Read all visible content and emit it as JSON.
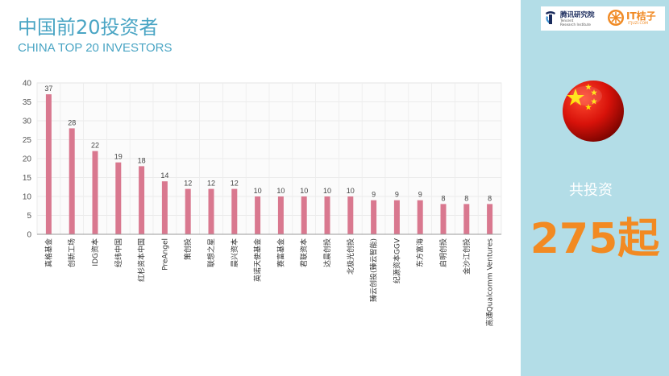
{
  "header": {
    "title": "中国前20投资者",
    "subtitle": "CHINA TOP 20 INVESTORS"
  },
  "logos": {
    "tencent_name": "腾讯研究院",
    "tencent_sub_line1": "Tencent",
    "tencent_sub_line2": "Research Institute",
    "it_name": "IT桔子",
    "it_sub": "ITJUZI.COM"
  },
  "side_panel": {
    "total_label": "共投资",
    "total_value": "275起"
  },
  "colors": {
    "title": "#4aa5c4",
    "bar": "#d9788f",
    "side_panel_bg": "#b3dde7",
    "total_value": "#f28a22"
  },
  "chart_data": {
    "type": "bar",
    "categories": [
      "真格基金",
      "创新工场",
      "IDG资本",
      "经纬中国",
      "红杉资本中国",
      "PreAngel",
      "策创投",
      "联想之星",
      "晨兴资本",
      "英诺天使基金",
      "赛富基金",
      "君联资本",
      "达晨创投",
      "北极光创投",
      "臻云创投(臻云智能)",
      "纪源资本GGV",
      "东方富海",
      "启明创投",
      "金沙江创投",
      "高通Qualcomm Ventures"
    ],
    "values": [
      37,
      28,
      22,
      19,
      18,
      14,
      12,
      12,
      12,
      10,
      10,
      10,
      10,
      10,
      9,
      9,
      9,
      8,
      8,
      8
    ],
    "ylim": [
      0,
      40
    ],
    "yticks": [
      0,
      5,
      10,
      15,
      20,
      25,
      30,
      35,
      40
    ],
    "grid": true,
    "data_labels": true
  }
}
